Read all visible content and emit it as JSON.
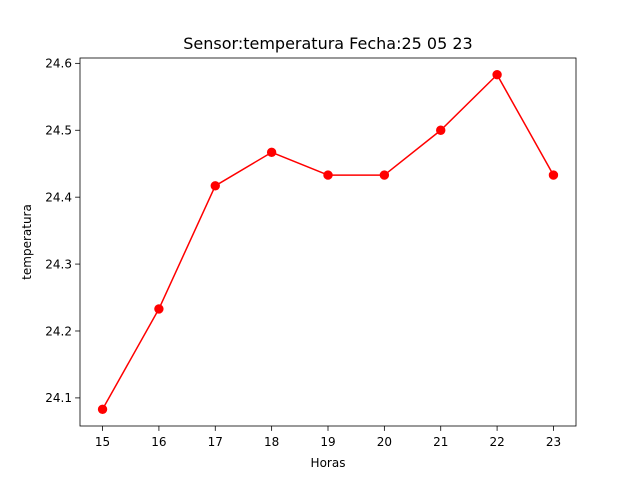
{
  "chart_data": {
    "type": "line",
    "title": "Sensor:temperatura Fecha:25 05 23",
    "xlabel": "Horas",
    "ylabel": "temperatura",
    "x": [
      15,
      16,
      17,
      18,
      19,
      20,
      21,
      22,
      23
    ],
    "x_tick_labels": [
      "15",
      "16",
      "17",
      "18",
      "19",
      "20",
      "21",
      "22",
      "23"
    ],
    "y_ticks": [
      24.1,
      24.2,
      24.3,
      24.4,
      24.5,
      24.6
    ],
    "y_tick_labels": [
      "24.1",
      "24.2",
      "24.3",
      "24.4",
      "24.5",
      "24.6"
    ],
    "xlim": [
      14.6,
      23.4
    ],
    "ylim": [
      24.058,
      24.608
    ],
    "grid": false,
    "series": [
      {
        "values": [
          24.083,
          24.233,
          24.417,
          24.467,
          24.433,
          24.433,
          24.5,
          24.583,
          24.433
        ],
        "color": "#ff0000",
        "marker": "circle"
      }
    ]
  }
}
